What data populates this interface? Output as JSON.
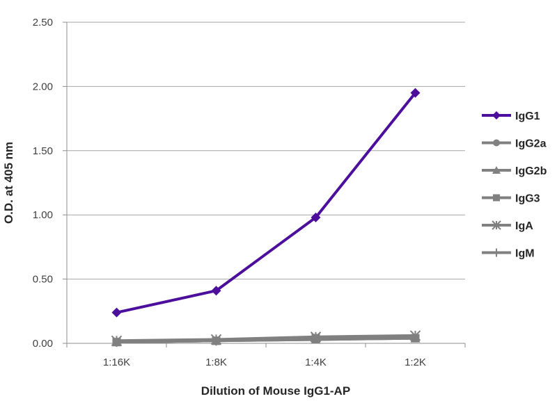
{
  "chart_data": {
    "type": "line",
    "categories": [
      "1:16K",
      "1:8K",
      "1:4K",
      "1:2K"
    ],
    "series": [
      {
        "name": "IgG1",
        "values": [
          0.24,
          0.41,
          0.98,
          1.95
        ],
        "color": "#4b0f9c",
        "marker": "diamond"
      },
      {
        "name": "IgG2a",
        "values": [
          0.01,
          0.02,
          0.03,
          0.04
        ],
        "color": "#808080",
        "marker": "circle"
      },
      {
        "name": "IgG2b",
        "values": [
          0.01,
          0.02,
          0.03,
          0.04
        ],
        "color": "#808080",
        "marker": "triangle"
      },
      {
        "name": "IgG3",
        "values": [
          0.01,
          0.02,
          0.04,
          0.04
        ],
        "color": "#808080",
        "marker": "square"
      },
      {
        "name": "IgA",
        "values": [
          0.02,
          0.03,
          0.05,
          0.06
        ],
        "color": "#808080",
        "marker": "star"
      },
      {
        "name": "IgM",
        "values": [
          0.01,
          0.02,
          0.04,
          0.05
        ],
        "color": "#808080",
        "marker": "plus"
      }
    ],
    "xlabel": "Dilution of Mouse IgG1-AP",
    "ylabel": "O.D. at 405 nm",
    "yticks": [
      "0.00",
      "0.50",
      "1.00",
      "1.50",
      "2.00",
      "2.50"
    ],
    "ylim": [
      0,
      2.5
    ],
    "grid": true,
    "legend_position": "right"
  }
}
